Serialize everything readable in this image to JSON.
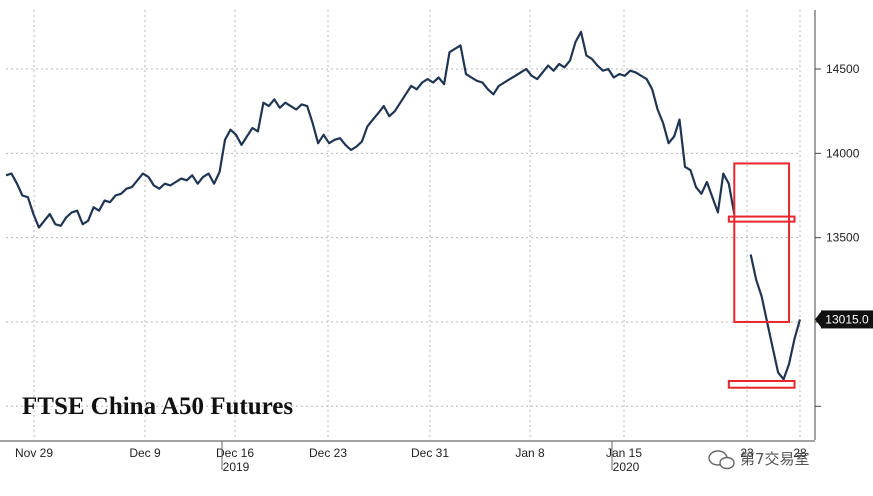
{
  "chart_data": {
    "type": "line",
    "title": "FTSE China A50 Futures",
    "xlabel": "",
    "ylabel": "",
    "ylim": [
      12300,
      14850
    ],
    "yticks": [
      13500,
      14000,
      14500
    ],
    "x_tick_labels": [
      "Nov 29",
      "Dec 9",
      "Dec 16",
      "Dec 23",
      "Dec 31",
      "Jan 8",
      "Jan 15",
      "23",
      "28"
    ],
    "year_labels": [
      "2019",
      "2020"
    ],
    "last_value_label": "13015.0",
    "series": [
      {
        "values": [
          13870,
          13880,
          13820,
          13750,
          13740,
          13640,
          13560,
          13600,
          13640,
          13580,
          13570,
          13620,
          13650,
          13660,
          13580,
          13600,
          13680,
          13660,
          13720,
          13710,
          13750,
          13760,
          13790,
          13800,
          13840,
          13880,
          13860,
          13810,
          13790,
          13820,
          13810,
          13830,
          13850,
          13840,
          13870,
          13820,
          13860,
          13880,
          13820,
          13890,
          14080,
          14140,
          14110,
          14050,
          14100,
          14150,
          14130,
          14300,
          14280,
          14320,
          14270,
          14300,
          14280,
          14260,
          14290,
          14280,
          14180,
          14060,
          14110,
          14060,
          14080,
          14090,
          14050,
          14020,
          14040,
          14070,
          14160,
          14200,
          14240,
          14280,
          14220,
          14250,
          14300,
          14350,
          14400,
          14380,
          14420,
          14440,
          14420,
          14450,
          14410,
          14600,
          14620,
          14640,
          14470,
          14450,
          14430,
          14420,
          14380,
          14350,
          14400,
          14420,
          14440,
          14460,
          14480,
          14500,
          14460,
          14440,
          14480,
          14520,
          14490,
          14530,
          14510,
          14550,
          14660,
          14720,
          14580,
          14560,
          14520,
          14490,
          14500,
          14450,
          14470,
          14460,
          14490,
          14480,
          14460,
          14440,
          14380,
          14260,
          14180,
          14060,
          14100,
          14200,
          13920,
          13900,
          13800,
          13760,
          13830,
          13740,
          13650,
          13880,
          13820,
          13640,
          null,
          null,
          13400,
          13250,
          13150,
          13000,
          12850,
          12700,
          12660,
          12750,
          12900,
          13015
        ]
      }
    ],
    "highlight_boxes": [
      {
        "x_index": [
          133,
          143
        ],
        "y_range": [
          13000,
          13940
        ]
      },
      {
        "x_index": [
          132,
          144
        ],
        "y_range": [
          13595,
          13625
        ]
      },
      {
        "x_index": [
          132,
          144
        ],
        "y_range": [
          12610,
          12650
        ]
      }
    ],
    "colors": {
      "line": "#1f3552",
      "grid": "#b8b8b8",
      "highlight": "#e8262c",
      "label_bg": "#111111"
    },
    "grid": true
  },
  "watermark": {
    "text": "第7交易室"
  }
}
